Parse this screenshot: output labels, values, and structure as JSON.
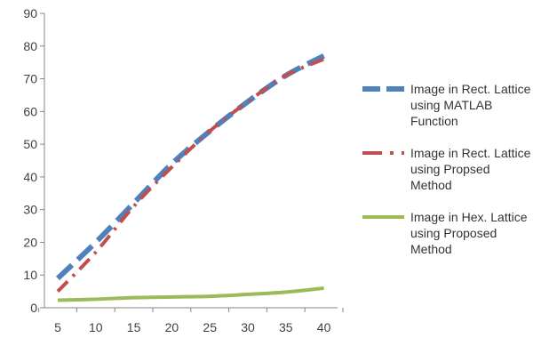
{
  "chart_data": {
    "type": "line",
    "title": "",
    "xlabel": "",
    "ylabel": "",
    "x": [
      5,
      10,
      15,
      20,
      25,
      30,
      35,
      40
    ],
    "xlim": [
      5,
      40
    ],
    "ylim": [
      0,
      90
    ],
    "y_ticks": [
      0,
      10,
      20,
      30,
      40,
      50,
      60,
      70,
      80,
      90
    ],
    "x_tick_labels": [
      "5",
      "10",
      "15",
      "20",
      "25",
      "30",
      "35",
      "40"
    ],
    "y_tick_labels": [
      "0",
      "10",
      "20",
      "30",
      "40",
      "50",
      "60",
      "70",
      "80",
      "90"
    ],
    "grid": false,
    "legend_position": "right",
    "series": [
      {
        "name": "Image in Rect. Lattice using MATLAB Function",
        "legend_lines": [
          "Image in Rect. Lattice",
          "using MATLAB",
          "Function"
        ],
        "color": "#4F81BD",
        "style": "long-dash",
        "values": [
          9,
          20,
          32,
          44,
          54,
          63,
          71,
          77
        ]
      },
      {
        "name": "Image in Rect. Lattice using Propsed Method",
        "legend_lines": [
          "Image in Rect. Lattice",
          "using Propsed",
          "Method"
        ],
        "color": "#C0504D",
        "style": "dash-dot",
        "values": [
          5,
          17,
          31,
          43,
          54,
          63,
          71,
          76
        ]
      },
      {
        "name": "Image in Hex. Lattice using Proposed Method",
        "legend_lines": [
          "Image in Hex. Lattice",
          "using Proposed",
          "Method"
        ],
        "color": "#9BBB59",
        "style": "solid",
        "values": [
          2.3,
          2.6,
          3.1,
          3.3,
          3.5,
          4.1,
          4.8,
          6
        ]
      }
    ]
  }
}
